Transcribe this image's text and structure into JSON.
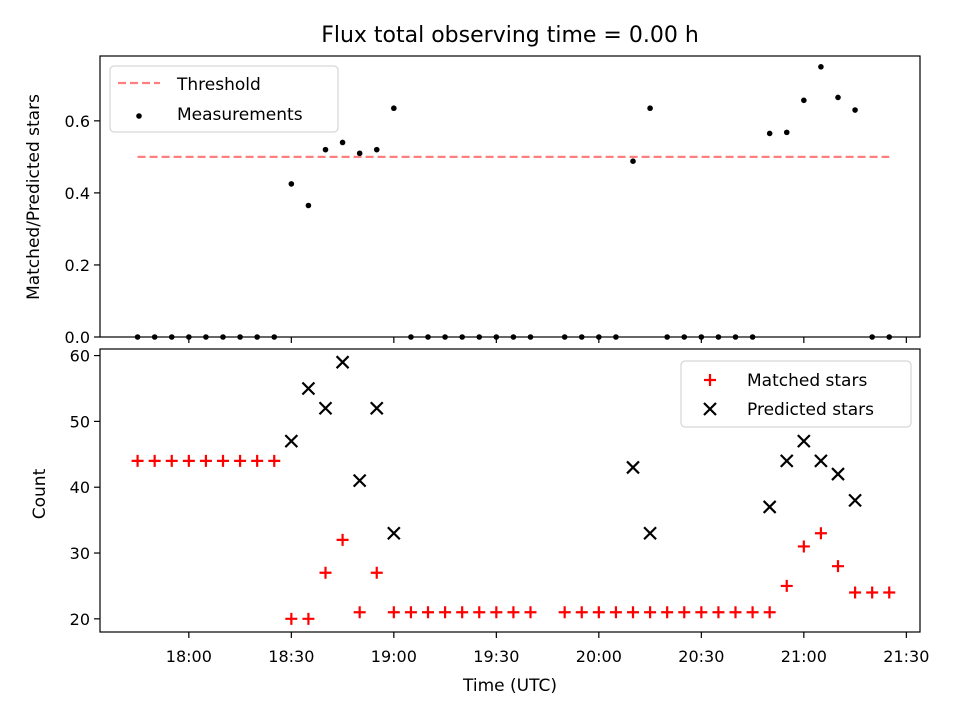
{
  "chart_data": [
    {
      "type": "scatter",
      "title": "Flux total observing time = 0.00 h",
      "xlabel": "",
      "ylabel": "Matched/Predicted stars",
      "ylim": [
        0,
        0.78
      ],
      "yticks": [
        "0.0",
        "0.2",
        "0.4",
        "0.6"
      ],
      "grid": false,
      "legend_position": "upper-left",
      "threshold": {
        "name": "Threshold",
        "value": 0.5,
        "color": "#ff7f7f",
        "x_start": "17:45",
        "x_end": "21:25"
      },
      "series": [
        {
          "name": "Measurements",
          "color": "#000000",
          "x": [
            "17:45",
            "17:50",
            "17:55",
            "18:00",
            "18:05",
            "18:10",
            "18:15",
            "18:20",
            "18:25",
            "18:30",
            "18:35",
            "18:40",
            "18:45",
            "18:50",
            "18:55",
            "19:00",
            "19:05",
            "19:10",
            "19:15",
            "19:20",
            "19:25",
            "19:30",
            "19:35",
            "19:40",
            "19:50",
            "19:55",
            "20:00",
            "20:05",
            "20:10",
            "20:15",
            "20:20",
            "20:25",
            "20:30",
            "20:35",
            "20:40",
            "20:45",
            "20:50",
            "20:55",
            "21:00",
            "21:05",
            "21:10",
            "21:15",
            "21:20",
            "21:25"
          ],
          "y": [
            0,
            0,
            0,
            0,
            0,
            0,
            0,
            0,
            0,
            0.425,
            0.365,
            0.52,
            0.54,
            0.51,
            0.52,
            0.635,
            0,
            0,
            0,
            0,
            0,
            0,
            0,
            0,
            0,
            0,
            0,
            0,
            0.488,
            0.635,
            0,
            0,
            0,
            0,
            0,
            0,
            0.565,
            0.568,
            0.657,
            0.75,
            0.665,
            0.63,
            0,
            0
          ]
        }
      ]
    },
    {
      "type": "scatter",
      "title": "",
      "xlabel": "Time (UTC)",
      "ylabel": "Count",
      "ylim": [
        18,
        61
      ],
      "yticks": [
        "20",
        "30",
        "40",
        "50",
        "60"
      ],
      "xticks": [
        "18:00",
        "18:30",
        "19:00",
        "19:30",
        "20:00",
        "20:30",
        "21:00",
        "21:30"
      ],
      "xlim": [
        "17:34",
        "21:34"
      ],
      "grid": false,
      "legend_position": "upper-right",
      "series": [
        {
          "name": "Matched stars",
          "marker": "+",
          "color": "#ff0000",
          "x": [
            "17:45",
            "17:50",
            "17:55",
            "18:00",
            "18:05",
            "18:10",
            "18:15",
            "18:20",
            "18:25",
            "18:30",
            "18:35",
            "18:40",
            "18:45",
            "18:50",
            "18:55",
            "19:00",
            "19:05",
            "19:10",
            "19:15",
            "19:20",
            "19:25",
            "19:30",
            "19:35",
            "19:40",
            "19:50",
            "19:55",
            "20:00",
            "20:05",
            "20:10",
            "20:15",
            "20:20",
            "20:25",
            "20:30",
            "20:35",
            "20:40",
            "20:45",
            "20:50",
            "20:55",
            "21:00",
            "21:05",
            "21:10",
            "21:15",
            "21:20",
            "21:25"
          ],
          "y": [
            44,
            44,
            44,
            44,
            44,
            44,
            44,
            44,
            44,
            20,
            20,
            27,
            32,
            21,
            27,
            21,
            21,
            21,
            21,
            21,
            21,
            21,
            21,
            21,
            21,
            21,
            21,
            21,
            21,
            21,
            21,
            21,
            21,
            21,
            21,
            21,
            21,
            25,
            31,
            33,
            28,
            24,
            24,
            24
          ]
        },
        {
          "name": "Predicted stars",
          "marker": "x",
          "color": "#000000",
          "x": [
            "18:30",
            "18:35",
            "18:40",
            "18:45",
            "18:50",
            "18:55",
            "19:00",
            "20:10",
            "20:15",
            "20:50",
            "20:55",
            "21:00",
            "21:05",
            "21:10",
            "21:15"
          ],
          "y": [
            47,
            55,
            52,
            59,
            41,
            52,
            33,
            43,
            33,
            37,
            44,
            47,
            44,
            42,
            38
          ]
        }
      ]
    }
  ]
}
